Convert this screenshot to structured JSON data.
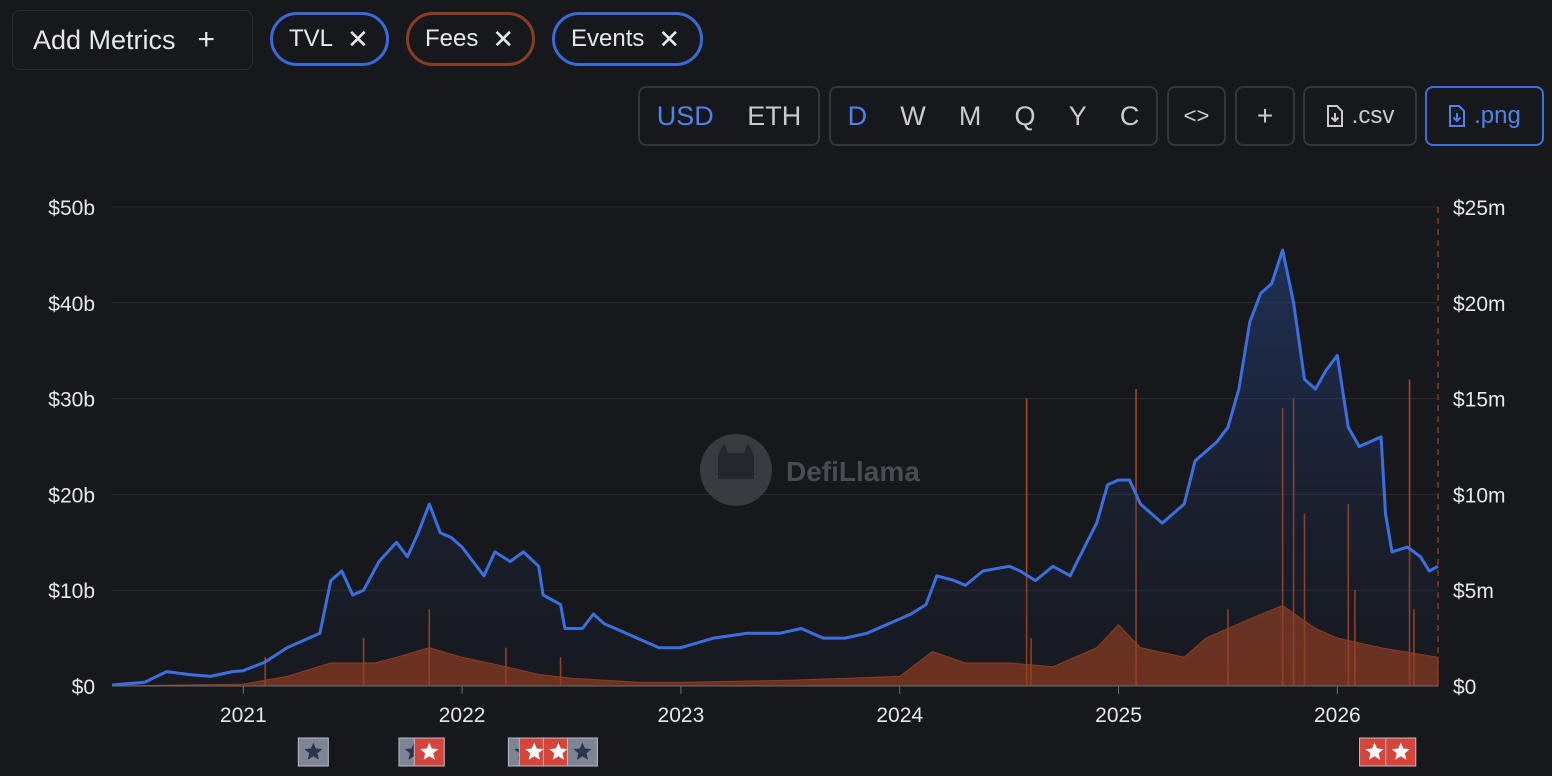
{
  "toolbar": {
    "add_metrics_label": "Add Metrics",
    "add_icon": "plus-icon",
    "chips": [
      {
        "label": "TVL",
        "color": "#3a6ad9"
      },
      {
        "label": "Fees",
        "color": "#8a3d22"
      },
      {
        "label": "Events",
        "color": "#3a6ad9"
      }
    ],
    "currency": {
      "options": [
        "USD",
        "ETH"
      ],
      "selected": "USD"
    },
    "periods": {
      "options": [
        "D",
        "W",
        "M",
        "Q",
        "Y",
        "C"
      ],
      "selected": "D"
    },
    "embed_icon": "code-icon",
    "add_chart_label": "+",
    "csv_label": ".csv",
    "png_label": ".png"
  },
  "watermark": "DefiLlama",
  "colors": {
    "tvl": "#3b6fe0",
    "fees": "#8c3a1c",
    "grid": "#2a2c32",
    "event_red": "#d6453b",
    "event_gray": "#7d8494"
  },
  "chart_data": {
    "type": "line",
    "x_ticks": [
      "2021",
      "2022",
      "2023",
      "2024",
      "2025",
      "2026"
    ],
    "y_left_ticks": [
      "$0",
      "$10b",
      "$20b",
      "$30b",
      "$40b",
      "$50b"
    ],
    "y_right_ticks": [
      "$0",
      "$5m",
      "$10m",
      "$15m",
      "$20m",
      "$25m"
    ],
    "ylim_left": [
      0,
      50
    ],
    "ylim_right": [
      0,
      25
    ],
    "x_range": [
      2020.4,
      2026.46
    ],
    "grid": true,
    "series": [
      {
        "name": "TVL",
        "unit": "USD billions",
        "axis": "left",
        "points": [
          [
            2020.4,
            0.1
          ],
          [
            2020.55,
            0.4
          ],
          [
            2020.65,
            1.5
          ],
          [
            2020.75,
            1.2
          ],
          [
            2020.85,
            1.0
          ],
          [
            2020.95,
            1.5
          ],
          [
            2021.0,
            1.6
          ],
          [
            2021.1,
            2.5
          ],
          [
            2021.2,
            4.0
          ],
          [
            2021.3,
            5.0
          ],
          [
            2021.35,
            5.5
          ],
          [
            2021.4,
            11.0
          ],
          [
            2021.45,
            12.0
          ],
          [
            2021.5,
            9.5
          ],
          [
            2021.55,
            10.0
          ],
          [
            2021.62,
            13.0
          ],
          [
            2021.7,
            15.0
          ],
          [
            2021.75,
            13.5
          ],
          [
            2021.8,
            16.0
          ],
          [
            2021.85,
            19.0
          ],
          [
            2021.9,
            16.0
          ],
          [
            2021.95,
            15.5
          ],
          [
            2022.0,
            14.5
          ],
          [
            2022.05,
            13.0
          ],
          [
            2022.1,
            11.5
          ],
          [
            2022.15,
            14.0
          ],
          [
            2022.22,
            13.0
          ],
          [
            2022.28,
            14.0
          ],
          [
            2022.35,
            12.5
          ],
          [
            2022.37,
            9.5
          ],
          [
            2022.45,
            8.5
          ],
          [
            2022.47,
            6.0
          ],
          [
            2022.55,
            6.0
          ],
          [
            2022.6,
            7.5
          ],
          [
            2022.65,
            6.5
          ],
          [
            2022.7,
            6.0
          ],
          [
            2022.8,
            5.0
          ],
          [
            2022.9,
            4.0
          ],
          [
            2023.0,
            4.0
          ],
          [
            2023.15,
            5.0
          ],
          [
            2023.3,
            5.5
          ],
          [
            2023.45,
            5.5
          ],
          [
            2023.55,
            6.0
          ],
          [
            2023.65,
            5.0
          ],
          [
            2023.75,
            5.0
          ],
          [
            2023.85,
            5.5
          ],
          [
            2023.95,
            6.5
          ],
          [
            2024.05,
            7.5
          ],
          [
            2024.12,
            8.5
          ],
          [
            2024.17,
            11.5
          ],
          [
            2024.25,
            11.0
          ],
          [
            2024.3,
            10.5
          ],
          [
            2024.38,
            12.0
          ],
          [
            2024.5,
            12.5
          ],
          [
            2024.55,
            12.0
          ],
          [
            2024.62,
            11.0
          ],
          [
            2024.7,
            12.5
          ],
          [
            2024.78,
            11.5
          ],
          [
            2024.8,
            12.5
          ],
          [
            2024.9,
            17.0
          ],
          [
            2024.95,
            21.0
          ],
          [
            2025.0,
            21.5
          ],
          [
            2025.05,
            21.5
          ],
          [
            2025.1,
            19.0
          ],
          [
            2025.2,
            17.0
          ],
          [
            2025.3,
            19.0
          ],
          [
            2025.35,
            23.5
          ],
          [
            2025.45,
            25.5
          ],
          [
            2025.5,
            27.0
          ],
          [
            2025.55,
            31.0
          ],
          [
            2025.6,
            38.0
          ],
          [
            2025.65,
            41.0
          ],
          [
            2025.7,
            42.0
          ],
          [
            2025.75,
            45.5
          ],
          [
            2025.8,
            40.0
          ],
          [
            2025.85,
            32.0
          ],
          [
            2025.9,
            31.0
          ],
          [
            2025.95,
            33.0
          ],
          [
            2026.0,
            34.5
          ],
          [
            2026.05,
            27.0
          ],
          [
            2026.1,
            25.0
          ],
          [
            2026.15,
            25.5
          ],
          [
            2026.2,
            26.0
          ],
          [
            2026.22,
            18.0
          ],
          [
            2026.25,
            14.0
          ],
          [
            2026.32,
            14.5
          ],
          [
            2026.38,
            13.5
          ],
          [
            2026.42,
            12.0
          ],
          [
            2026.46,
            12.5
          ]
        ]
      },
      {
        "name": "Fees",
        "unit": "USD millions",
        "axis": "right",
        "points": [
          [
            2020.4,
            0
          ],
          [
            2021.0,
            0.1
          ],
          [
            2021.2,
            0.5
          ],
          [
            2021.4,
            1.2
          ],
          [
            2021.6,
            1.2
          ],
          [
            2021.7,
            1.5
          ],
          [
            2021.85,
            2.0
          ],
          [
            2022.0,
            1.5
          ],
          [
            2022.2,
            1.0
          ],
          [
            2022.35,
            0.6
          ],
          [
            2022.5,
            0.4
          ],
          [
            2022.8,
            0.2
          ],
          [
            2023.0,
            0.2
          ],
          [
            2023.5,
            0.3
          ],
          [
            2024.0,
            0.5
          ],
          [
            2024.15,
            1.8
          ],
          [
            2024.3,
            1.2
          ],
          [
            2024.5,
            1.2
          ],
          [
            2024.7,
            1.0
          ],
          [
            2024.9,
            2.0
          ],
          [
            2025.0,
            3.2
          ],
          [
            2025.1,
            2.0
          ],
          [
            2025.3,
            1.5
          ],
          [
            2025.4,
            2.5
          ],
          [
            2025.6,
            3.5
          ],
          [
            2025.75,
            4.2
          ],
          [
            2025.9,
            3.0
          ],
          [
            2026.0,
            2.5
          ],
          [
            2026.2,
            2.0
          ],
          [
            2026.3,
            1.8
          ],
          [
            2026.46,
            1.5
          ]
        ],
        "spikes": [
          [
            2021.1,
            1.5
          ],
          [
            2021.55,
            2.5
          ],
          [
            2021.85,
            4.0
          ],
          [
            2022.2,
            2.0
          ],
          [
            2022.45,
            1.5
          ],
          [
            2024.58,
            15.0
          ],
          [
            2024.6,
            2.5
          ],
          [
            2025.08,
            15.5
          ],
          [
            2025.5,
            4.0
          ],
          [
            2025.75,
            14.5
          ],
          [
            2025.8,
            15.0
          ],
          [
            2025.85,
            9.0
          ],
          [
            2026.05,
            9.5
          ],
          [
            2026.08,
            5.0
          ],
          [
            2026.33,
            16.0
          ],
          [
            2026.35,
            4.0
          ]
        ]
      }
    ],
    "events": [
      {
        "date": 2021.32,
        "kind": "gray"
      },
      {
        "date": 2021.78,
        "kind": "gray"
      },
      {
        "date": 2021.85,
        "kind": "red"
      },
      {
        "date": 2022.28,
        "kind": "gray"
      },
      {
        "date": 2022.33,
        "kind": "red"
      },
      {
        "date": 2022.44,
        "kind": "red"
      },
      {
        "date": 2022.55,
        "kind": "gray"
      },
      {
        "date": 2026.17,
        "kind": "red"
      },
      {
        "date": 2026.29,
        "kind": "red"
      }
    ]
  }
}
